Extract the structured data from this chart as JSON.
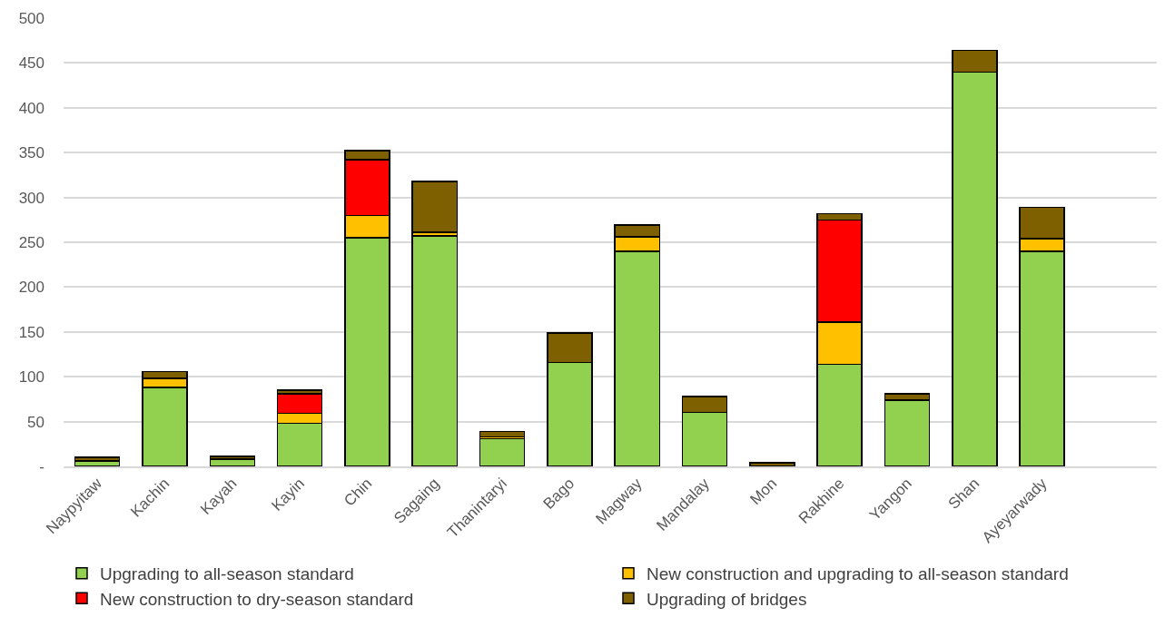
{
  "chart_data": {
    "type": "bar",
    "stacked": true,
    "categories": [
      "Naypyitaw",
      "Kachin",
      "Kayah",
      "Kayin",
      "Chin",
      "Sagaing",
      "Thanintaryi",
      "Bago",
      "Magway",
      "Mandalay",
      "Mon",
      "Rakhine",
      "Yangon",
      "Shan",
      "Ayeyarwady"
    ],
    "series": [
      {
        "name": "Upgrading to all-season standard",
        "color": "#92d050",
        "values": [
          6,
          88,
          8,
          48,
          255,
          257,
          31,
          116,
          240,
          60,
          0,
          114,
          74,
          440,
          240
        ]
      },
      {
        "name": "New construction and upgrading to all-season standard",
        "color": "#ffc000",
        "values": [
          0,
          10,
          0,
          11,
          25,
          4,
          2,
          0,
          16,
          0,
          0,
          47,
          0,
          0,
          14
        ]
      },
      {
        "name": "New construction to dry-season standard",
        "color": "#ff0000",
        "values": [
          0,
          0,
          0,
          22,
          62,
          0,
          0,
          0,
          0,
          0,
          0,
          114,
          0,
          0,
          0
        ]
      },
      {
        "name": "Upgrading of bridges",
        "color": "#7f6000",
        "values": [
          4,
          8,
          3,
          4,
          10,
          57,
          6,
          33,
          13,
          18,
          4,
          7,
          7,
          24,
          35
        ]
      }
    ],
    "ylim": [
      0,
      500
    ],
    "yticks": [
      {
        "value": 0,
        "label": "-"
      },
      50,
      100,
      150,
      200,
      250,
      300,
      350,
      400,
      450,
      500
    ],
    "grid": "y",
    "legend": "bottom"
  }
}
